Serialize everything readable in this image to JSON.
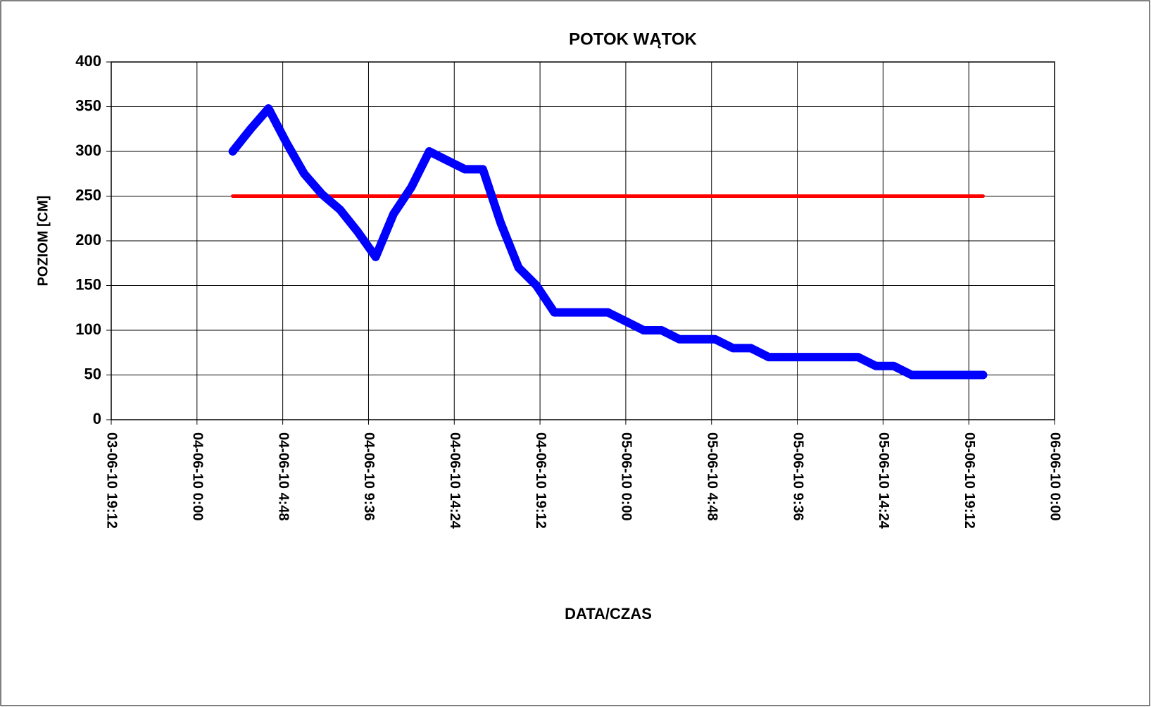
{
  "chart_data": {
    "type": "line",
    "title": "POTOK  WĄTOK",
    "xlabel": "DATA/CZAS",
    "ylabel": "POZIOM [CM]",
    "x": [
      40333.0833,
      40333.125,
      40333.1667,
      40333.2083,
      40333.25,
      40333.2917,
      40333.3333,
      40333.375,
      40333.4167,
      40333.4583,
      40333.5,
      40333.5417,
      40333.5833,
      40333.625,
      40333.6667,
      40333.7083,
      40333.75,
      40333.7917,
      40333.8333,
      40333.875,
      40333.9167,
      40333.9583,
      40334.0,
      40334.0417,
      40334.0833,
      40334.125,
      40334.1667,
      40334.2083,
      40334.25,
      40334.2917,
      40334.3333,
      40334.375,
      40334.4167,
      40334.4583,
      40334.5,
      40334.5417,
      40334.5833,
      40334.625,
      40334.6667,
      40334.7083,
      40334.75,
      40334.7917,
      40334.8333
    ],
    "series": [
      {
        "color": "#0000ff",
        "values": [
          300,
          325,
          348,
          310,
          275,
          252,
          235,
          210,
          182,
          230,
          260,
          300,
          290,
          280,
          280,
          220,
          170,
          150,
          120,
          120,
          120,
          120,
          110,
          100,
          100,
          90,
          90,
          90,
          80,
          80,
          70,
          70,
          70,
          70,
          70,
          70,
          60,
          60,
          50,
          50,
          50,
          50,
          50
        ]
      },
      {
        "color": "#ff0000",
        "values": [
          250,
          250,
          250,
          250,
          250,
          250,
          250,
          250,
          250,
          250,
          250,
          250,
          250,
          250,
          250,
          250,
          250,
          250,
          250,
          250,
          250,
          250,
          250,
          250,
          250,
          250,
          250,
          250,
          250,
          250,
          250,
          250,
          250,
          250,
          250,
          250,
          250,
          250,
          250,
          250,
          250,
          250,
          250
        ]
      }
    ],
    "xlim": [
      40332.8,
      40335.0
    ],
    "xticks": [
      {
        "value": 40332.8,
        "label": "03-06-10 19:12"
      },
      {
        "value": 40333.0,
        "label": "04-06-10 0:00"
      },
      {
        "value": 40333.2,
        "label": "04-06-10 4:48"
      },
      {
        "value": 40333.4,
        "label": "04-06-10 9:36"
      },
      {
        "value": 40333.6,
        "label": "04-06-10 14:24"
      },
      {
        "value": 40333.8,
        "label": "04-06-10 19:12"
      },
      {
        "value": 40334.0,
        "label": "05-06-10 0:00"
      },
      {
        "value": 40334.2,
        "label": "05-06-10 4:48"
      },
      {
        "value": 40334.4,
        "label": "05-06-10 9:36"
      },
      {
        "value": 40334.6,
        "label": "05-06-10 14:24"
      },
      {
        "value": 40334.8,
        "label": "05-06-10 19:12"
      },
      {
        "value": 40335.0,
        "label": "06-06-10 0:00"
      }
    ],
    "ylim": [
      0,
      400
    ],
    "yticks": [
      0,
      50,
      100,
      150,
      200,
      250,
      300,
      350,
      400
    ],
    "grid": true
  }
}
